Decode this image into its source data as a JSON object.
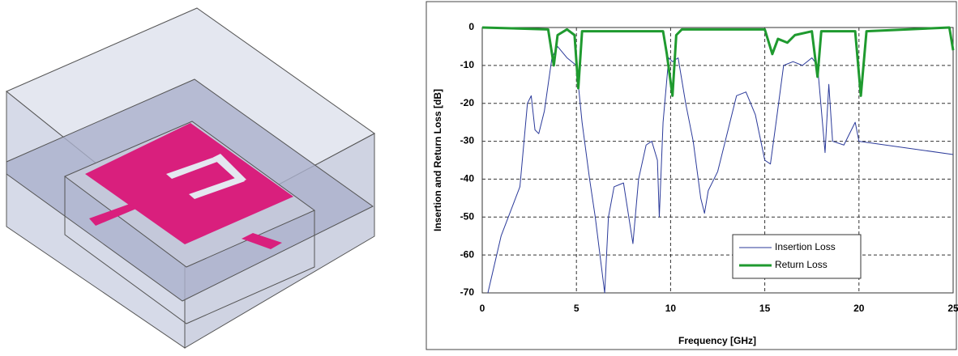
{
  "chart_data": {
    "type": "line",
    "x_label": "Frequency [GHz]",
    "y_label": "Insertion and Return Loss [dB]",
    "xlim": [
      0,
      25
    ],
    "xticks": [
      0,
      5,
      10,
      15,
      20,
      25
    ],
    "ylim": [
      -70,
      0
    ],
    "yticks": [
      0,
      -10,
      -20,
      -30,
      -40,
      -50,
      -60,
      -70
    ],
    "grid": true,
    "legend": "lower right",
    "series": [
      {
        "name": "Insertion Loss",
        "color": "#2b3a9a",
        "x": [
          0.3,
          1,
          2,
          2.4,
          2.6,
          2.8,
          3.0,
          3.3,
          3.7,
          4.0,
          4.5,
          5.0,
          5.3,
          5.7,
          6.0,
          6.3,
          6.5,
          6.7,
          7.0,
          7.5,
          8.0,
          8.3,
          8.7,
          9.0,
          9.3,
          9.4,
          9.6,
          9.9,
          10.1,
          10.4,
          10.8,
          11.2,
          11.6,
          11.8,
          12.0,
          12.5,
          13.0,
          13.5,
          14.0,
          14.5,
          15.0,
          15.3,
          15.6,
          16.0,
          16.5,
          17.0,
          17.5,
          17.8,
          18.2,
          18.4,
          18.6,
          19.2,
          19.8,
          20,
          25
        ],
        "values": [
          -70,
          -55,
          -42,
          -20,
          -18,
          -27,
          -28,
          -22,
          -8,
          -5,
          -8,
          -10,
          -25,
          -40,
          -50,
          -62,
          -70,
          -50,
          -42,
          -41,
          -57,
          -40,
          -31,
          -30,
          -35,
          -50,
          -25,
          -8,
          -9,
          -8,
          -20,
          -30,
          -45,
          -49,
          -43,
          -38,
          -28,
          -18,
          -17,
          -23,
          -35,
          -36,
          -25,
          -10,
          -9,
          -10,
          -8,
          -10,
          -33,
          -15,
          -30,
          -31,
          -25,
          -30,
          -33.5
        ]
      },
      {
        "name": "Return Loss",
        "color": "#1f9a2f",
        "x": [
          0,
          3.5,
          3.8,
          4.0,
          4.5,
          4.9,
          5.1,
          5.3,
          9.6,
          9.8,
          10.1,
          10.3,
          10.6,
          15.0,
          15.4,
          15.7,
          16.2,
          16.6,
          17.5,
          17.8,
          18.0,
          19.8,
          20.1,
          20.4,
          24.8,
          25
        ],
        "values": [
          0,
          -0.5,
          -10,
          -2,
          -0.5,
          -2,
          -16,
          -1,
          -1,
          -7,
          -18,
          -2,
          -0.5,
          -0.5,
          -7,
          -3,
          -4,
          -2,
          -1,
          -13,
          -1,
          -1,
          -18,
          -1,
          0,
          -6
        ]
      }
    ]
  }
}
